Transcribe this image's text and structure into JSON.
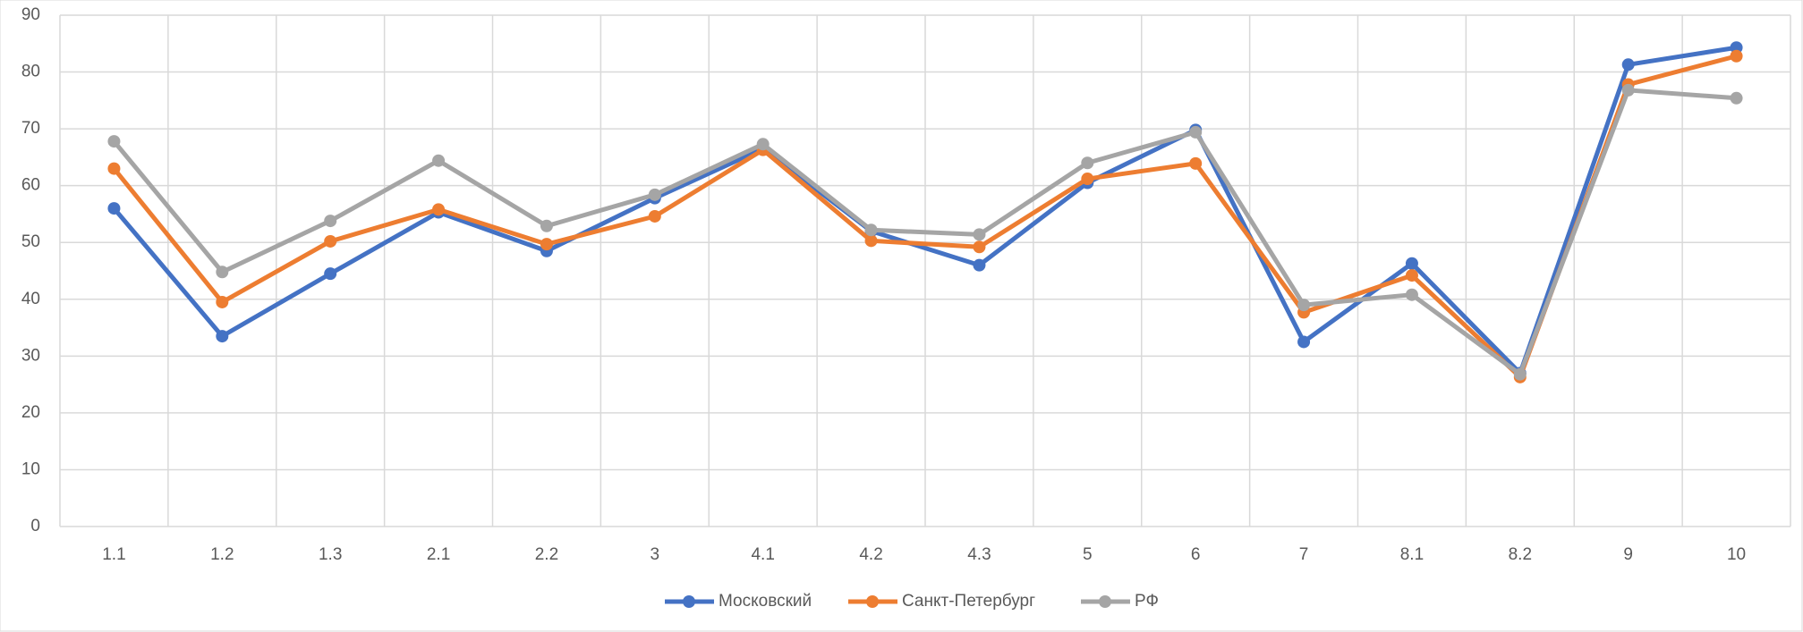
{
  "chart_data": {
    "type": "line",
    "categories": [
      "1.1",
      "1.2",
      "1.3",
      "2.1",
      "2.2",
      "3",
      "4.1",
      "4.2",
      "4.3",
      "5",
      "6",
      "7",
      "8.1",
      "8.2",
      "9",
      "10"
    ],
    "series": [
      {
        "name": "Московский",
        "color": "#4472c4",
        "values": [
          56,
          33.5,
          44.5,
          55.3,
          48.5,
          57.8,
          66.5,
          52,
          46,
          60.5,
          69.8,
          32.5,
          46.3,
          27,
          81.3,
          84.3
        ]
      },
      {
        "name": "Санкт-Петербург",
        "color": "#ed7d31",
        "values": [
          63,
          39.5,
          50.2,
          55.8,
          49.7,
          54.6,
          66.3,
          50.3,
          49.2,
          61.2,
          63.9,
          37.7,
          44.2,
          26.3,
          77.8,
          82.8
        ]
      },
      {
        "name": "РФ",
        "color": "#a5a5a5",
        "values": [
          67.8,
          44.8,
          53.8,
          64.4,
          52.9,
          58.4,
          67.3,
          52.2,
          51.4,
          64,
          69.4,
          39,
          40.8,
          26.8,
          76.8,
          75.4
        ]
      }
    ],
    "ylim": [
      0,
      90
    ],
    "yticks": [
      0,
      10,
      20,
      30,
      40,
      50,
      60,
      70,
      80,
      90
    ],
    "grid": true,
    "legend": "bottom"
  }
}
